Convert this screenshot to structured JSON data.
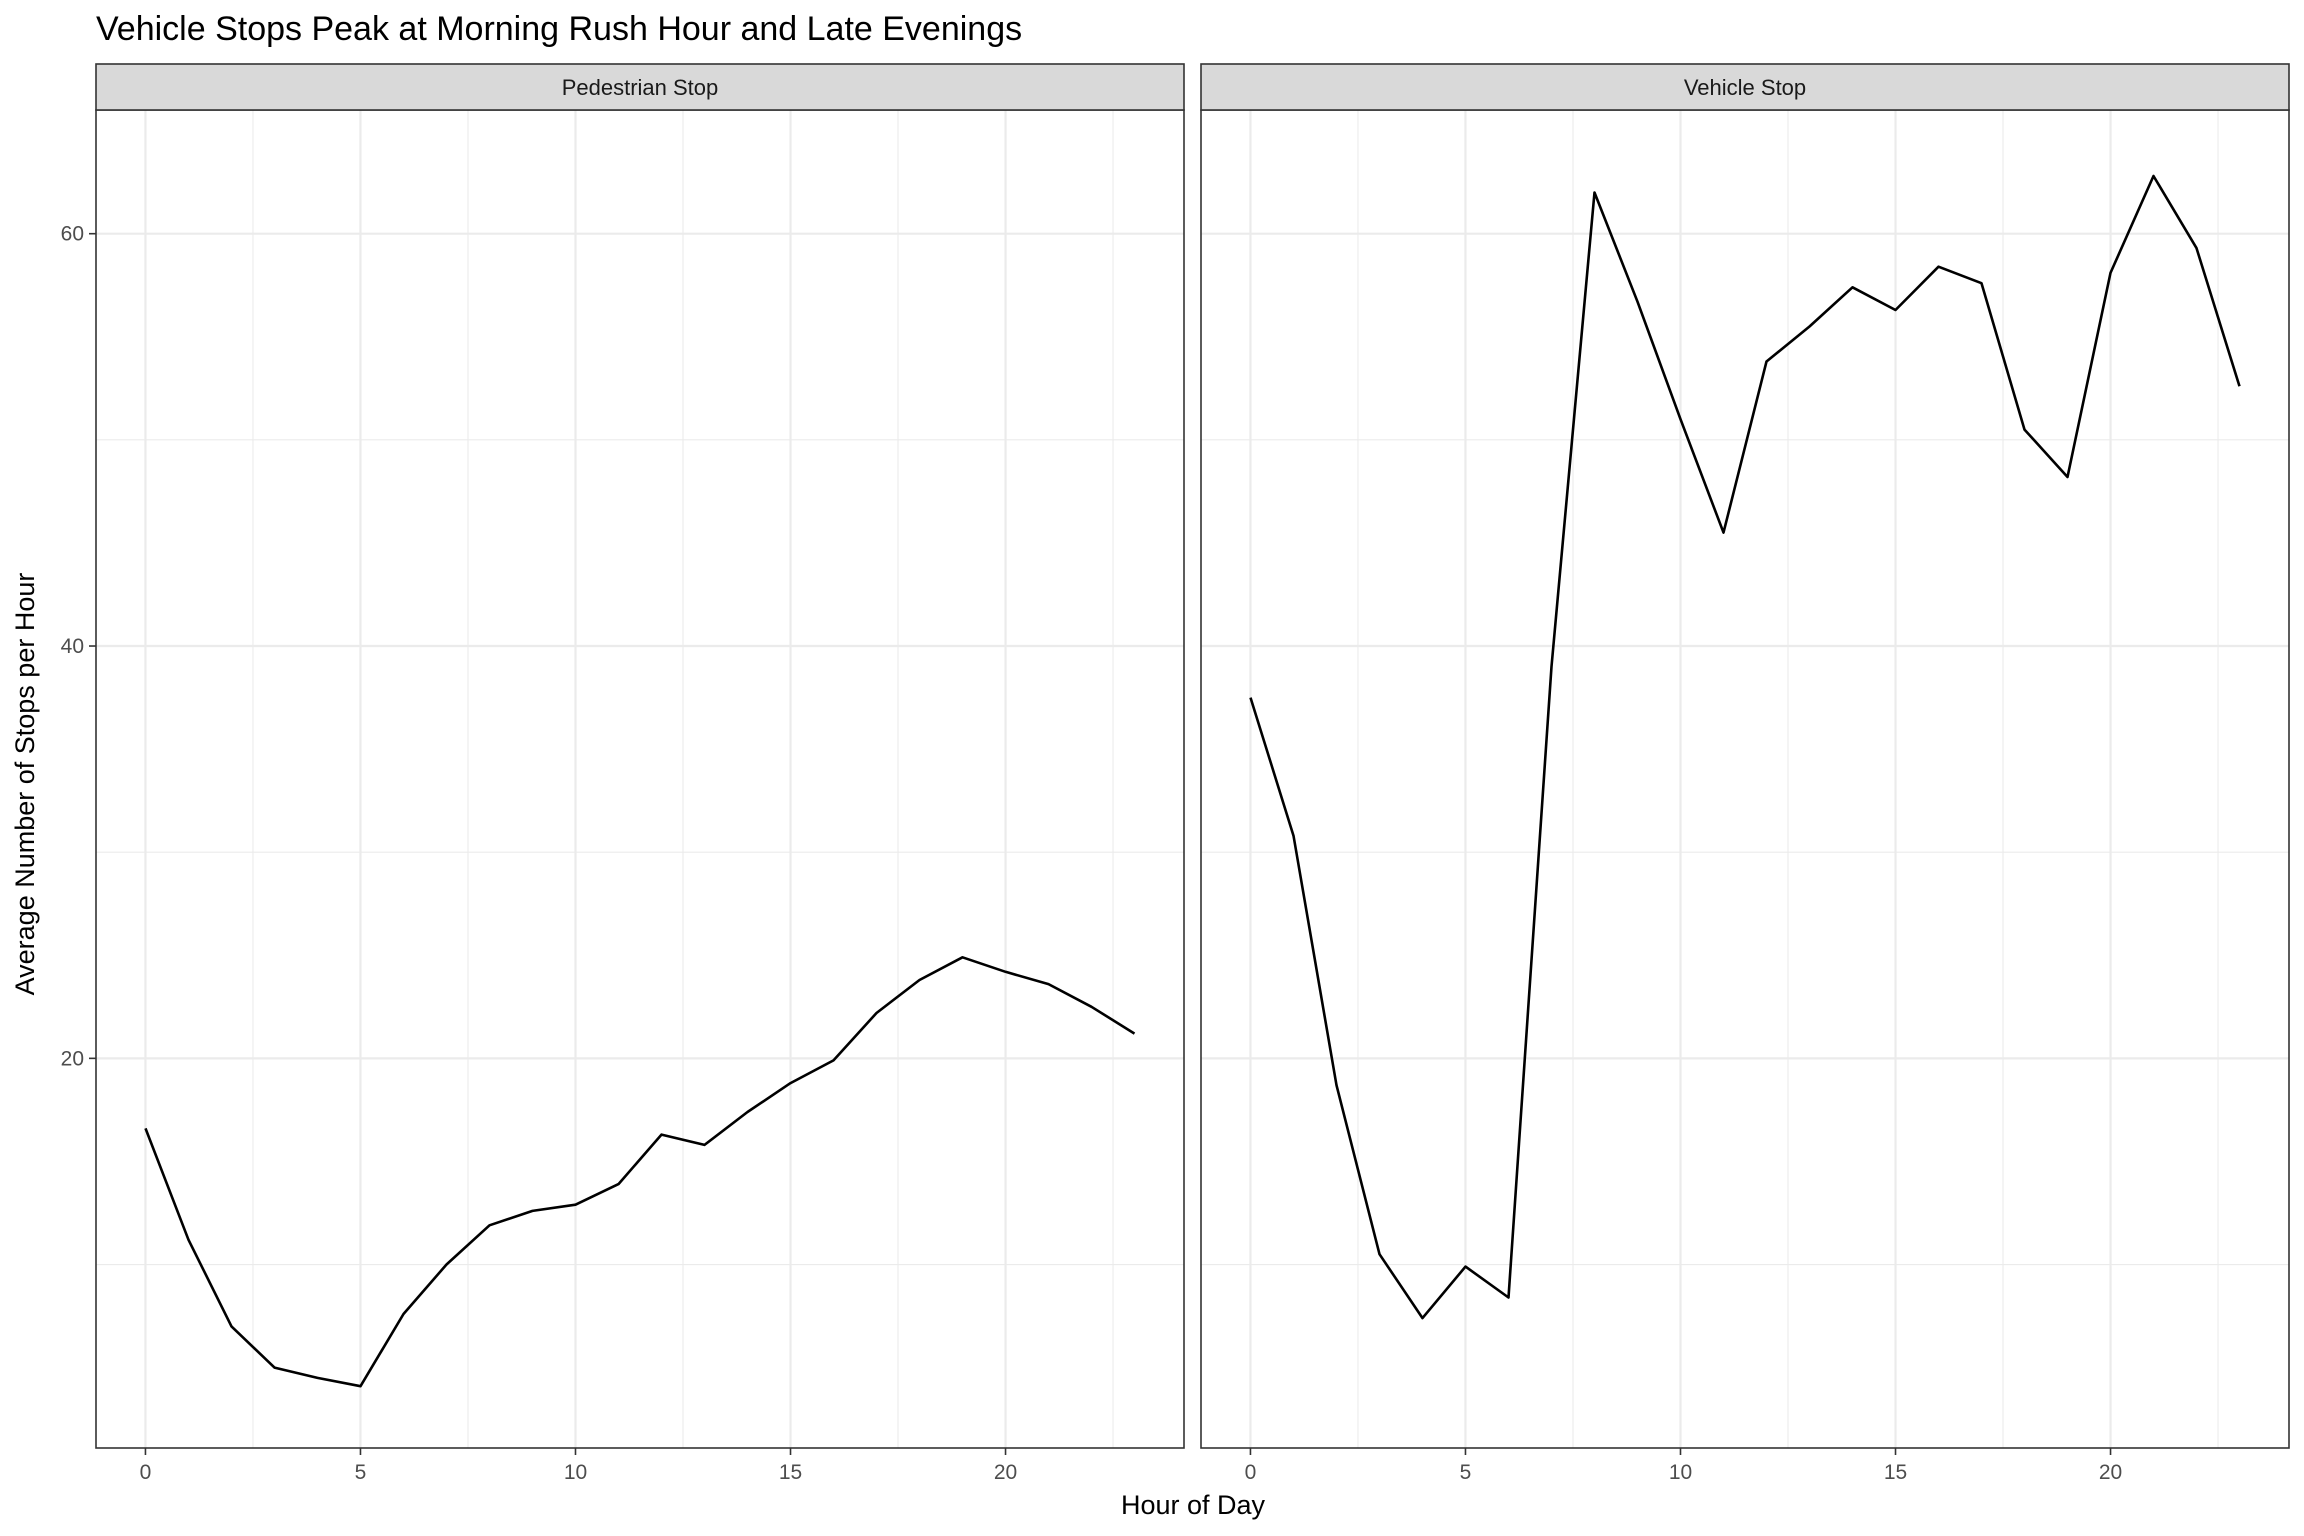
{
  "chart_data": {
    "type": "line",
    "title": "Vehicle Stops Peak at Morning Rush Hour and Late Evenings",
    "xlabel": "Hour of Day",
    "ylabel": "Average Number of Stops per Hour",
    "xlim": [
      -1.15,
      24.15
    ],
    "ylim": [
      1.1,
      66.0
    ],
    "x_ticks": [
      0,
      5,
      10,
      15,
      20
    ],
    "y_ticks": [
      20,
      40,
      60
    ],
    "grid": true,
    "facets": [
      {
        "label": "Pedestrian Stop",
        "x": [
          0,
          1,
          2,
          3,
          4,
          5,
          6,
          7,
          8,
          9,
          10,
          11,
          12,
          13,
          14,
          15,
          16,
          17,
          18,
          19,
          20,
          21,
          22,
          23
        ],
        "values": [
          16.6,
          11.2,
          7.0,
          5.0,
          4.5,
          4.1,
          7.6,
          10.0,
          11.9,
          12.6,
          12.9,
          13.9,
          16.3,
          15.8,
          17.4,
          18.8,
          19.9,
          22.2,
          23.8,
          24.9,
          24.2,
          23.6,
          22.5,
          21.2
        ]
      },
      {
        "label": "Vehicle Stop",
        "x": [
          0,
          1,
          2,
          3,
          4,
          5,
          6,
          7,
          8,
          9,
          10,
          11,
          12,
          13,
          14,
          15,
          16,
          17,
          18,
          19,
          20,
          21,
          22,
          23
        ],
        "values": [
          37.5,
          30.8,
          18.7,
          10.5,
          7.4,
          9.9,
          8.4,
          39.0,
          62.0,
          56.7,
          51.0,
          45.5,
          53.8,
          55.5,
          57.4,
          56.3,
          58.4,
          57.6,
          50.5,
          48.2,
          58.1,
          62.8,
          59.3,
          52.6
        ]
      }
    ]
  }
}
